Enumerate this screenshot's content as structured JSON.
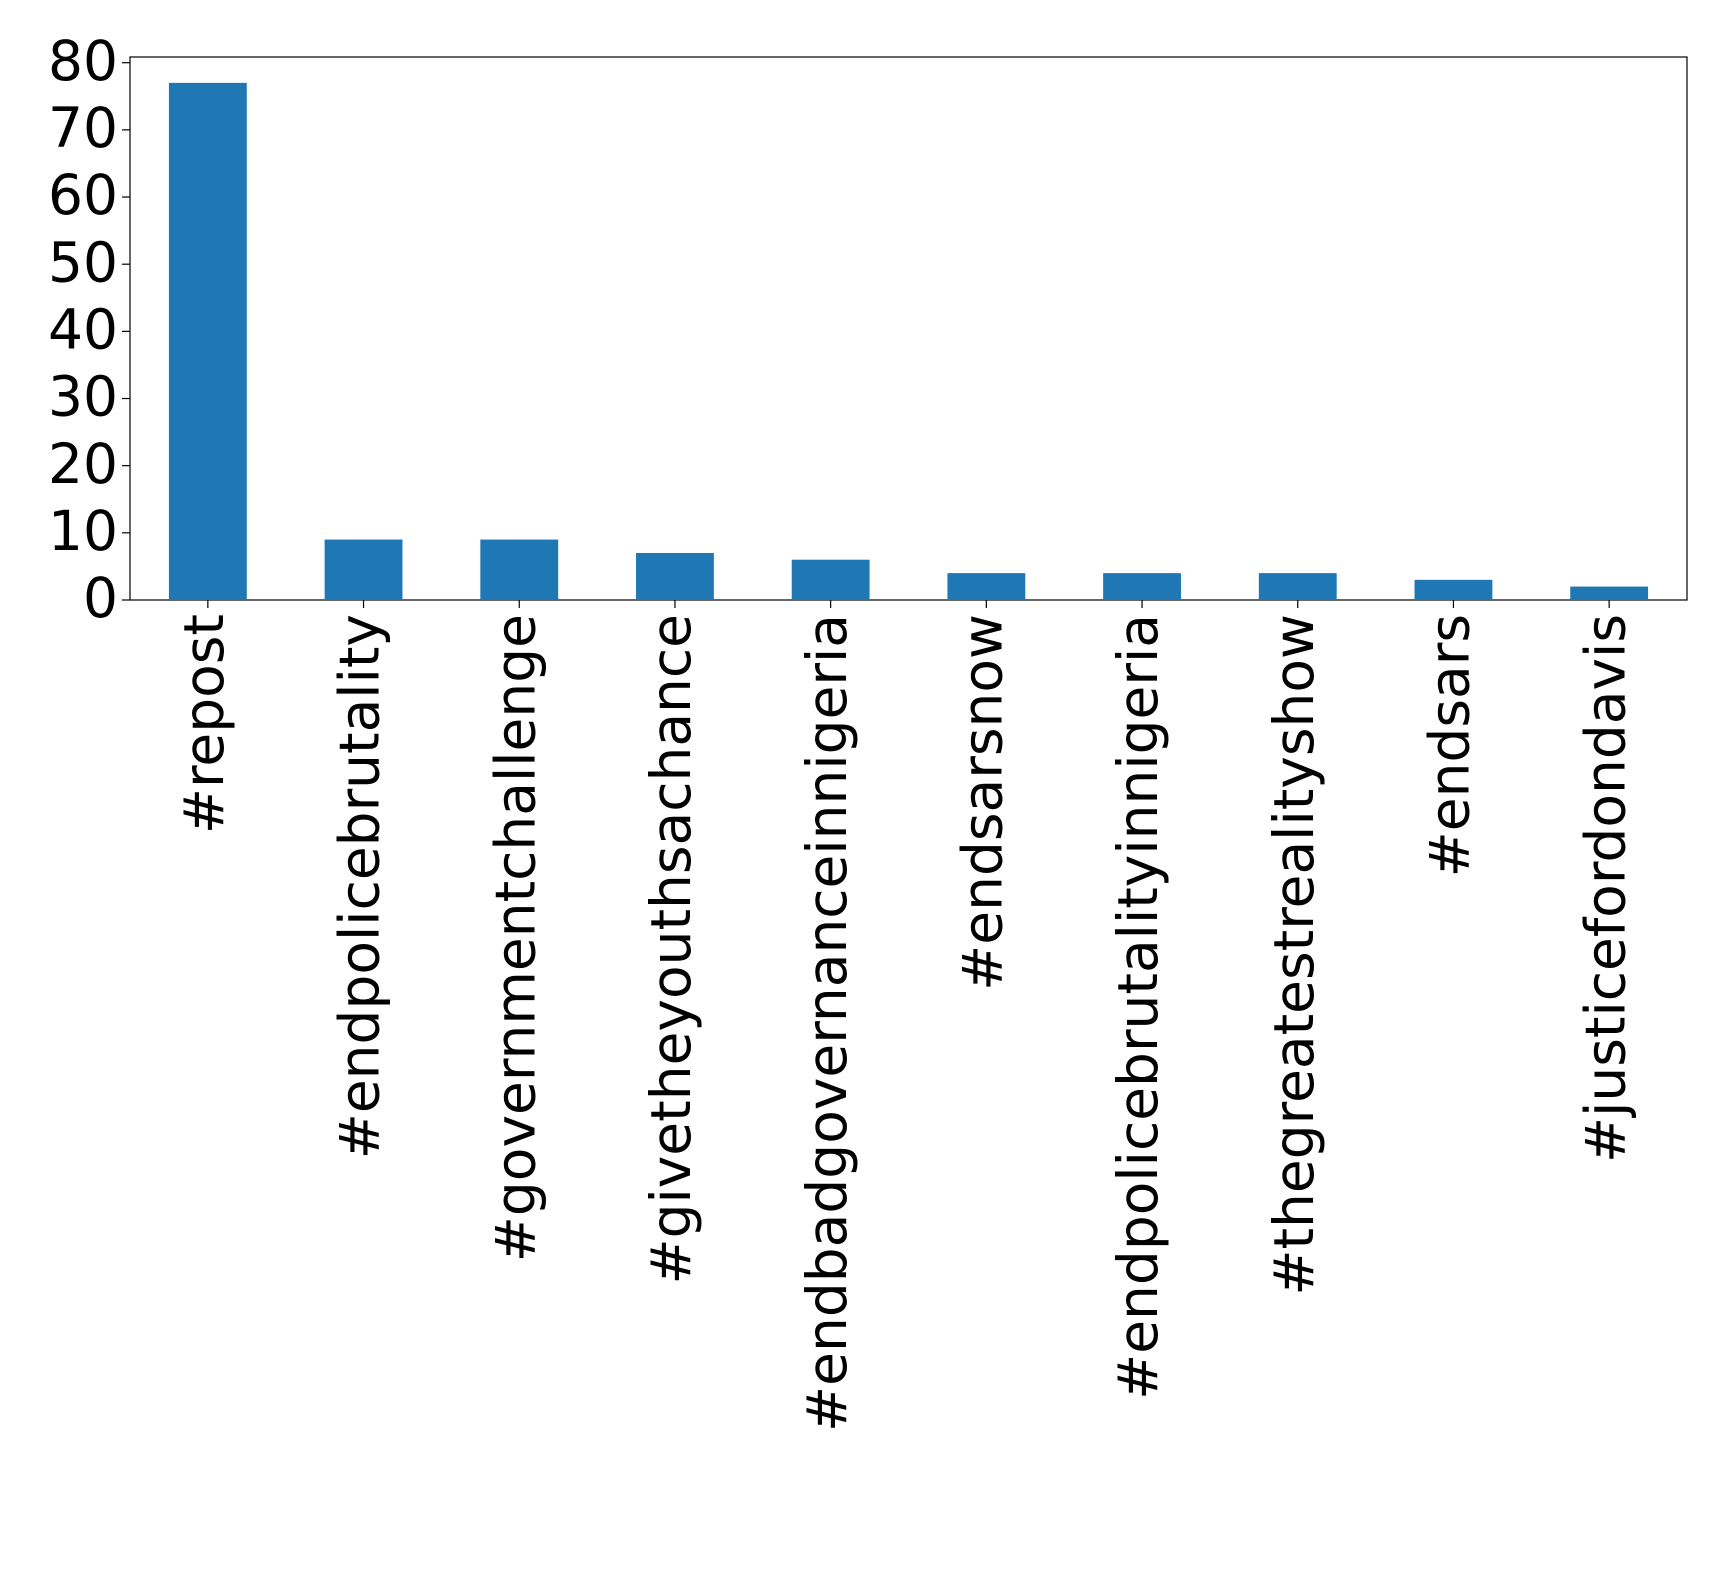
{
  "chart_data": {
    "type": "bar",
    "categories": [
      "#repost",
      "#endpolicebrutality",
      "#governmentchallenge",
      "#givetheyouthsachance",
      "#endbadgovernanceinnigeria",
      "#endsarsnow",
      "#endpolicebrutalityinnigeria",
      "#thegreatestrealityshow",
      "#endsars",
      "#justicefordondavis"
    ],
    "values": [
      77,
      9,
      9,
      7,
      6,
      4,
      4,
      4,
      3,
      2
    ],
    "color": "#1f77b4",
    "ylim": [
      0,
      80.85
    ],
    "yticks": [
      0,
      10,
      20,
      30,
      40,
      50,
      60,
      70,
      80
    ],
    "grid": false
  }
}
